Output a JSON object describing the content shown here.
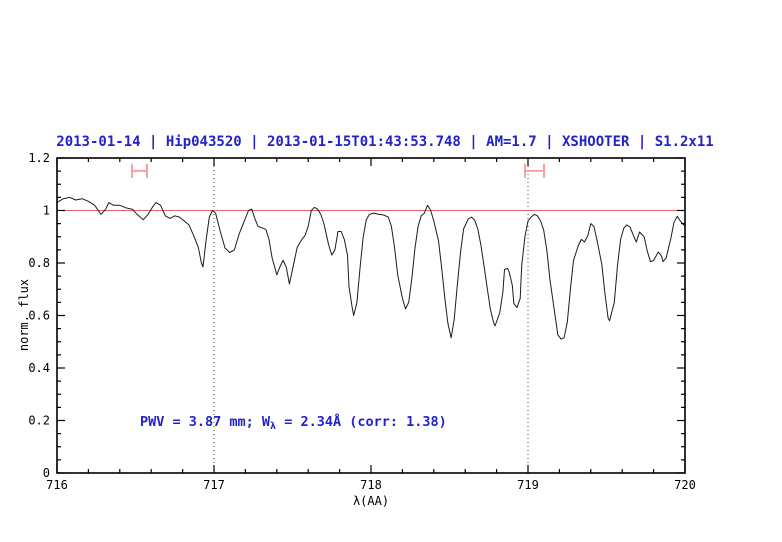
{
  "colors": {
    "accent_blue": "#2222cc",
    "reference_red": "#e06666",
    "marker_salmon": "#f4a2a2",
    "vline_gray": "#444444",
    "spectrum_black": "#1c1c1c",
    "axis_black": "#000000",
    "background": "#ffffff"
  },
  "title": {
    "text": "2013-01-14 | Hip043520 | 2013-01-15T01:43:53.748 | AM=1.7 | XSHOOTER | S1.2x11"
  },
  "annotation": {
    "pre": "PWV = 3.87 mm; W",
    "sub": "λ",
    "post": " = 2.34Å (corr: 1.38)"
  },
  "chart_data": {
    "type": "line",
    "title": "2013-01-14 | Hip043520 | 2013-01-15T01:43:53.748 | AM=1.7 | XSHOOTER | S1.2x11",
    "xlabel": "λ(AA)",
    "ylabel": "norm. flux",
    "xlim": [
      716,
      720
    ],
    "ylim": [
      0,
      1.2
    ],
    "grid": "off",
    "legend": "none",
    "x_ticks": {
      "major": [
        716,
        717,
        718,
        719,
        720
      ],
      "labels": [
        "716",
        "717",
        "718",
        "719",
        "720"
      ],
      "minor_step": 0.2
    },
    "y_ticks": {
      "major": [
        0,
        0.2,
        0.4,
        0.6,
        0.8,
        1,
        1.2
      ],
      "labels": [
        "0",
        "0.2",
        "0.4",
        "0.6",
        "0.8",
        "1",
        "1.2"
      ],
      "minor_step": 0.05
    },
    "reference_line": {
      "y": 1.0
    },
    "dotted_vlines": [
      {
        "x": 717
      },
      {
        "x": 719
      }
    ],
    "interval_markers": [
      {
        "x1": 716.478,
        "x2": 716.573,
        "y": 1.151,
        "cap_half_height": 0.027
      },
      {
        "x1": 718.981,
        "x2": 719.102,
        "y": 1.151,
        "cap_half_height": 0.027
      }
    ],
    "annotation_text": "PWV = 3.87 mm; Wλ = 2.34Å (corr: 1.38)",
    "series": [
      {
        "name": "telluric-spectrum",
        "points": [
          [
            716.0,
            1.03
          ],
          [
            716.04,
            1.045
          ],
          [
            716.08,
            1.05
          ],
          [
            716.12,
            1.04
          ],
          [
            716.16,
            1.045
          ],
          [
            716.2,
            1.035
          ],
          [
            716.24,
            1.02
          ],
          [
            716.28,
            0.985
          ],
          [
            716.31,
            1.005
          ],
          [
            716.33,
            1.03
          ],
          [
            716.36,
            1.02
          ],
          [
            716.4,
            1.02
          ],
          [
            716.44,
            1.01
          ],
          [
            716.48,
            1.005
          ],
          [
            716.51,
            0.985
          ],
          [
            716.55,
            0.965
          ],
          [
            716.58,
            0.985
          ],
          [
            716.61,
            1.015
          ],
          [
            716.63,
            1.03
          ],
          [
            716.66,
            1.02
          ],
          [
            716.69,
            0.98
          ],
          [
            716.72,
            0.97
          ],
          [
            716.75,
            0.98
          ],
          [
            716.78,
            0.975
          ],
          [
            716.81,
            0.96
          ],
          [
            716.84,
            0.945
          ],
          [
            716.87,
            0.905
          ],
          [
            716.9,
            0.86
          ],
          [
            716.92,
            0.8
          ],
          [
            716.93,
            0.785
          ],
          [
            716.95,
            0.89
          ],
          [
            716.97,
            0.975
          ],
          [
            716.99,
            1.0
          ],
          [
            717.01,
            0.99
          ],
          [
            717.04,
            0.92
          ],
          [
            717.07,
            0.857
          ],
          [
            717.1,
            0.84
          ],
          [
            717.13,
            0.85
          ],
          [
            717.16,
            0.91
          ],
          [
            717.19,
            0.955
          ],
          [
            717.22,
            1.0
          ],
          [
            717.24,
            1.005
          ],
          [
            717.26,
            0.97
          ],
          [
            717.28,
            0.94
          ],
          [
            717.31,
            0.933
          ],
          [
            717.33,
            0.928
          ],
          [
            717.35,
            0.89
          ],
          [
            717.37,
            0.82
          ],
          [
            717.4,
            0.755
          ],
          [
            717.42,
            0.785
          ],
          [
            717.44,
            0.81
          ],
          [
            717.46,
            0.785
          ],
          [
            717.48,
            0.72
          ],
          [
            717.5,
            0.775
          ],
          [
            717.53,
            0.86
          ],
          [
            717.56,
            0.89
          ],
          [
            717.58,
            0.905
          ],
          [
            717.6,
            0.94
          ],
          [
            717.62,
            1.0
          ],
          [
            717.64,
            1.012
          ],
          [
            717.66,
            1.005
          ],
          [
            717.68,
            0.985
          ],
          [
            717.7,
            0.95
          ],
          [
            717.73,
            0.87
          ],
          [
            717.75,
            0.83
          ],
          [
            717.77,
            0.85
          ],
          [
            717.79,
            0.92
          ],
          [
            717.81,
            0.92
          ],
          [
            717.83,
            0.89
          ],
          [
            717.85,
            0.83
          ],
          [
            717.86,
            0.71
          ],
          [
            717.88,
            0.63
          ],
          [
            717.89,
            0.6
          ],
          [
            717.91,
            0.65
          ],
          [
            717.93,
            0.78
          ],
          [
            717.95,
            0.9
          ],
          [
            717.97,
            0.965
          ],
          [
            717.99,
            0.985
          ],
          [
            718.02,
            0.99
          ],
          [
            718.05,
            0.985
          ],
          [
            718.08,
            0.983
          ],
          [
            718.11,
            0.975
          ],
          [
            718.13,
            0.94
          ],
          [
            718.15,
            0.86
          ],
          [
            718.17,
            0.755
          ],
          [
            718.2,
            0.665
          ],
          [
            718.22,
            0.625
          ],
          [
            718.24,
            0.65
          ],
          [
            718.26,
            0.74
          ],
          [
            718.28,
            0.857
          ],
          [
            718.3,
            0.94
          ],
          [
            718.32,
            0.98
          ],
          [
            718.34,
            0.99
          ],
          [
            718.36,
            1.02
          ],
          [
            718.38,
            1.0
          ],
          [
            718.4,
            0.96
          ],
          [
            718.43,
            0.885
          ],
          [
            718.45,
            0.78
          ],
          [
            718.47,
            0.667
          ],
          [
            718.49,
            0.57
          ],
          [
            718.51,
            0.515
          ],
          [
            718.53,
            0.585
          ],
          [
            718.55,
            0.715
          ],
          [
            718.57,
            0.84
          ],
          [
            718.59,
            0.93
          ],
          [
            718.62,
            0.968
          ],
          [
            718.64,
            0.975
          ],
          [
            718.66,
            0.964
          ],
          [
            718.68,
            0.93
          ],
          [
            718.7,
            0.868
          ],
          [
            718.72,
            0.79
          ],
          [
            718.74,
            0.705
          ],
          [
            718.76,
            0.625
          ],
          [
            718.78,
            0.575
          ],
          [
            718.79,
            0.56
          ],
          [
            718.82,
            0.61
          ],
          [
            718.84,
            0.69
          ],
          [
            718.85,
            0.775
          ],
          [
            718.87,
            0.78
          ],
          [
            718.88,
            0.765
          ],
          [
            718.9,
            0.715
          ],
          [
            718.91,
            0.645
          ],
          [
            718.93,
            0.63
          ],
          [
            718.95,
            0.665
          ],
          [
            718.96,
            0.79
          ],
          [
            718.98,
            0.9
          ],
          [
            719.0,
            0.96
          ],
          [
            719.02,
            0.975
          ],
          [
            719.04,
            0.985
          ],
          [
            719.06,
            0.98
          ],
          [
            719.08,
            0.96
          ],
          [
            719.1,
            0.925
          ],
          [
            719.12,
            0.85
          ],
          [
            719.14,
            0.735
          ],
          [
            719.17,
            0.61
          ],
          [
            719.19,
            0.527
          ],
          [
            719.21,
            0.51
          ],
          [
            719.23,
            0.515
          ],
          [
            719.25,
            0.575
          ],
          [
            719.27,
            0.7
          ],
          [
            719.29,
            0.81
          ],
          [
            719.32,
            0.865
          ],
          [
            719.34,
            0.89
          ],
          [
            719.36,
            0.88
          ],
          [
            719.38,
            0.903
          ],
          [
            719.4,
            0.95
          ],
          [
            719.42,
            0.94
          ],
          [
            719.44,
            0.885
          ],
          [
            719.47,
            0.795
          ],
          [
            719.49,
            0.685
          ],
          [
            719.51,
            0.59
          ],
          [
            719.52,
            0.58
          ],
          [
            719.55,
            0.65
          ],
          [
            719.57,
            0.79
          ],
          [
            719.59,
            0.89
          ],
          [
            719.61,
            0.933
          ],
          [
            719.63,
            0.945
          ],
          [
            719.65,
            0.937
          ],
          [
            719.67,
            0.907
          ],
          [
            719.69,
            0.88
          ],
          [
            719.71,
            0.918
          ],
          [
            719.74,
            0.9
          ],
          [
            719.76,
            0.845
          ],
          [
            719.78,
            0.805
          ],
          [
            719.8,
            0.81
          ],
          [
            719.83,
            0.842
          ],
          [
            719.85,
            0.827
          ],
          [
            719.86,
            0.805
          ],
          [
            719.88,
            0.82
          ],
          [
            719.91,
            0.895
          ],
          [
            719.93,
            0.955
          ],
          [
            719.95,
            0.978
          ],
          [
            719.97,
            0.96
          ],
          [
            720.0,
            0.94
          ]
        ]
      }
    ]
  }
}
